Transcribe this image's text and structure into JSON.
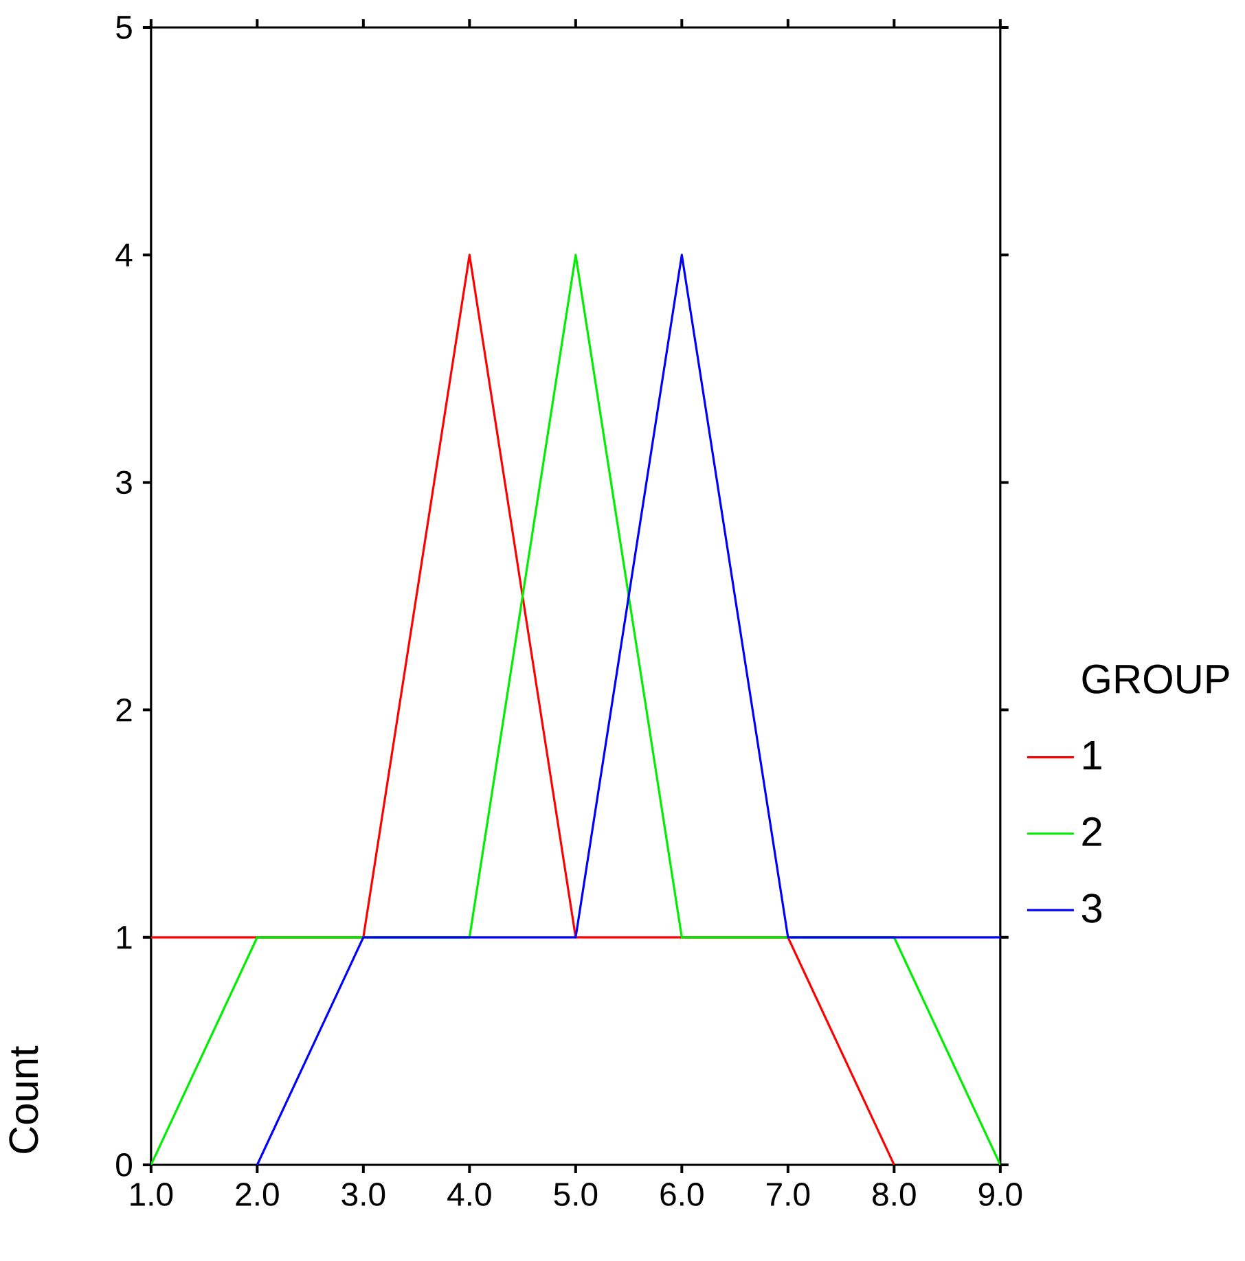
{
  "chart_data": {
    "type": "line",
    "ylabel": "Count",
    "legend_title": "GROUP",
    "x": [
      1,
      2,
      3,
      4,
      5,
      6,
      7,
      8,
      9
    ],
    "series": [
      {
        "name": "1",
        "color": "#ff0000",
        "values": [
          1,
          1,
          1,
          4,
          1,
          1,
          1,
          0,
          null
        ]
      },
      {
        "name": "2",
        "color": "#00ee00",
        "values": [
          0,
          1,
          1,
          1,
          4,
          1,
          1,
          1,
          0
        ]
      },
      {
        "name": "3",
        "color": "#0000ff",
        "values": [
          null,
          0,
          1,
          1,
          1,
          4,
          1,
          1,
          1
        ]
      }
    ],
    "xlim": [
      1,
      9
    ],
    "xticks": [
      {
        "value": 1,
        "label": "1.0"
      },
      {
        "value": 2,
        "label": "2.0"
      },
      {
        "value": 3,
        "label": "3.0"
      },
      {
        "value": 4,
        "label": "4.0"
      },
      {
        "value": 5,
        "label": "5.0"
      },
      {
        "value": 6,
        "label": "6.0"
      },
      {
        "value": 7,
        "label": "7.0"
      },
      {
        "value": 8,
        "label": "8.0"
      },
      {
        "value": 9,
        "label": "9.0"
      }
    ],
    "ylim": [
      0,
      5
    ],
    "yticks": [
      0,
      1,
      2,
      3,
      4,
      5
    ],
    "grid": false,
    "legend": "right",
    "marker": "none",
    "line_style": "solid"
  }
}
